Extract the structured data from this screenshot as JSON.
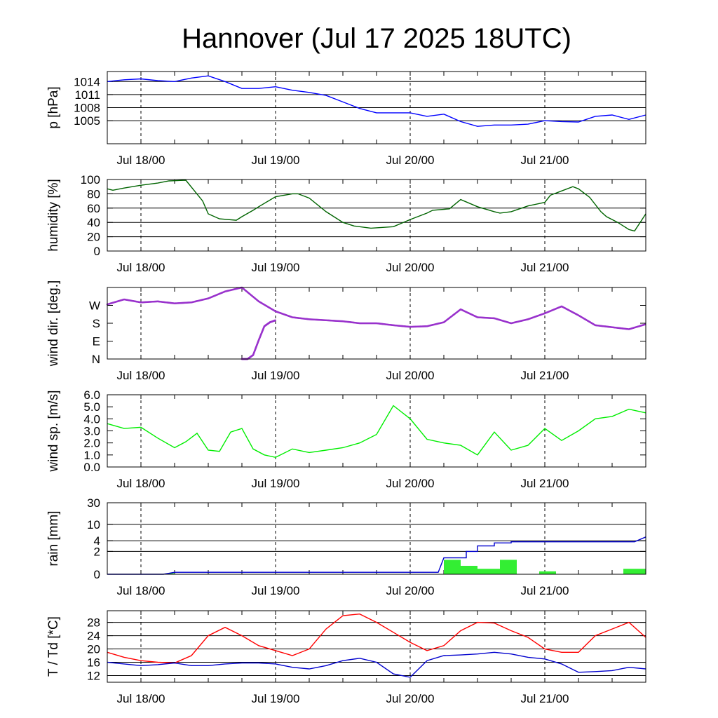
{
  "title": "Hannover (Jul 17 2025 18UTC)",
  "x_tick_labels": [
    "Jul 18/00",
    "Jul 19/00",
    "Jul 20/00",
    "Jul 21/00"
  ],
  "x_domain_hours": [
    0,
    96
  ],
  "x_tick_hours": [
    6,
    30,
    54,
    78
  ],
  "chart_data": [
    {
      "type": "line",
      "ylabel": "p [hPa]",
      "ylim": [
        999.7,
        1016.3
      ],
      "yticks": [
        1005,
        1008,
        1011,
        1014
      ],
      "ytick_labels": [
        "1005",
        "1008",
        "1011",
        "1014"
      ],
      "grid": true,
      "series": [
        {
          "color": "#0000ff",
          "x": [
            0,
            3,
            6,
            9,
            12,
            15,
            18,
            21,
            24,
            27,
            30,
            33,
            36,
            39,
            42,
            45,
            48,
            51,
            54,
            57,
            60,
            63,
            66,
            69,
            72,
            75,
            78,
            81,
            84,
            87,
            90,
            93,
            96
          ],
          "y": [
            1014,
            1014.4,
            1014.6,
            1014.2,
            1014,
            1014.8,
            1015.3,
            1014,
            1012.4,
            1012.4,
            1012.8,
            1012,
            1011.5,
            1010.8,
            1009.3,
            1007.8,
            1006.8,
            1006.8,
            1006.8,
            1006,
            1006.5,
            1004.8,
            1003.7,
            1004,
            1004,
            1004.2,
            1005,
            1004.8,
            1004.7,
            1006,
            1006.3,
            1005.3,
            1006.3
          ]
        }
      ]
    },
    {
      "type": "line",
      "ylabel": "humidity [%]",
      "ylim": [
        0,
        100
      ],
      "yticks": [
        0,
        20,
        40,
        60,
        80,
        100
      ],
      "ytick_labels": [
        "0",
        "20",
        "40",
        "60",
        "80",
        "100"
      ],
      "grid": true,
      "series": [
        {
          "color": "#006400",
          "x": [
            0,
            1,
            3,
            6,
            9,
            11,
            14,
            17,
            18,
            20,
            23,
            24,
            26,
            27,
            30,
            33,
            34,
            36,
            39,
            42,
            44,
            47,
            51,
            54,
            57,
            58,
            61,
            63,
            66,
            69,
            70,
            72,
            75,
            78,
            79,
            81,
            83,
            84,
            86,
            88,
            89,
            91,
            93,
            94,
            96
          ],
          "y": [
            87,
            85,
            88,
            92,
            95,
            98,
            99,
            70,
            52,
            45,
            43,
            48,
            57,
            62,
            76,
            80,
            80,
            74,
            55,
            40,
            35,
            32,
            34,
            44,
            53,
            57,
            59,
            72,
            62,
            55,
            53,
            55,
            63,
            68,
            78,
            84,
            90,
            87,
            75,
            55,
            48,
            40,
            30,
            28,
            52
          ]
        }
      ]
    },
    {
      "type": "scatter",
      "ylabel": "wind dir. [deg.]",
      "ylim": [
        0,
        360
      ],
      "yticks": [
        0,
        90,
        180,
        270
      ],
      "ytick_labels": [
        "N",
        "E",
        "S",
        "W"
      ],
      "grid": false,
      "series": [
        {
          "color": "#9932cc",
          "x": [
            0,
            3,
            6,
            9,
            12,
            15,
            18,
            21,
            24,
            27,
            30,
            33,
            36,
            39,
            42,
            45,
            48,
            51,
            54,
            57,
            60,
            63,
            66,
            69,
            72,
            75,
            78,
            81,
            84,
            87,
            90,
            93,
            96
          ],
          "y": [
            275,
            300,
            285,
            290,
            280,
            285,
            305,
            340,
            360,
            290,
            240,
            210,
            200,
            195,
            190,
            180,
            180,
            170,
            162,
            165,
            185,
            250,
            210,
            205,
            180,
            200,
            230,
            265,
            220,
            170,
            160,
            150,
            175
          ]
        },
        {
          "color": "#9932cc",
          "x": [
            24,
            25,
            26,
            27,
            28,
            29,
            30
          ],
          "y": [
            0,
            0,
            20,
            95,
            165,
            185,
            195
          ]
        }
      ]
    },
    {
      "type": "line",
      "ylabel": "wind sp. [m/s]",
      "ylim": [
        0,
        6
      ],
      "yticks": [
        0,
        1,
        2,
        3,
        4,
        5,
        6
      ],
      "ytick_labels": [
        "0.0",
        "1.0",
        "2.0",
        "3.0",
        "4.0",
        "5.0",
        "6.0"
      ],
      "grid": false,
      "series": [
        {
          "color": "#00ee00",
          "x": [
            0,
            3,
            6,
            9,
            12,
            14,
            16,
            18,
            20,
            22,
            24,
            26,
            28,
            30,
            33,
            36,
            39,
            42,
            45,
            48,
            51,
            54,
            57,
            60,
            63,
            66,
            69,
            72,
            75,
            78,
            81,
            84,
            87,
            90,
            93,
            96
          ],
          "y": [
            3.6,
            3.2,
            3.3,
            2.4,
            1.6,
            2.1,
            2.8,
            1.4,
            1.3,
            2.9,
            3.2,
            1.5,
            1.0,
            0.8,
            1.5,
            1.2,
            1.4,
            1.6,
            2.0,
            2.7,
            5.1,
            4.0,
            2.3,
            2.0,
            1.8,
            1.0,
            2.9,
            1.4,
            1.8,
            3.2,
            2.2,
            3.0,
            4.0,
            4.2,
            4.8,
            4.5
          ]
        }
      ]
    },
    {
      "type": "bar+line",
      "ylabel": "rain [mm]",
      "ylim": [
        0,
        30
      ],
      "yticks": [
        0,
        2,
        4,
        10,
        30
      ],
      "ytick_labels": [
        "0",
        "2",
        "4",
        "10",
        "30"
      ],
      "grid": true,
      "bars": [
        {
          "x0": 11,
          "x1": 12,
          "value": 0.05
        },
        {
          "x0": 60,
          "x1": 63,
          "value": 1.0
        },
        {
          "x0": 63,
          "x1": 66,
          "value": 0.5
        },
        {
          "x0": 66,
          "x1": 67,
          "value": 0.3
        },
        {
          "x0": 67,
          "x1": 70,
          "value": 0.3
        },
        {
          "x0": 70,
          "x1": 73,
          "value": 1.0
        },
        {
          "x0": 77,
          "x1": 80,
          "value": 0.15
        },
        {
          "x0": 92,
          "x1": 96,
          "value": 0.3
        }
      ],
      "series": [
        {
          "color": "#0000cd",
          "x": [
            0,
            10,
            12,
            59,
            60,
            64,
            64,
            66,
            66,
            69,
            69,
            72,
            72,
            94,
            96
          ],
          "y": [
            0,
            0,
            0.1,
            0.1,
            1.2,
            1.2,
            2.0,
            2.0,
            2.9,
            2.9,
            3.5,
            3.5,
            3.75,
            3.75,
            5.0
          ]
        }
      ]
    },
    {
      "type": "line",
      "ylabel": "T / Td [*C]",
      "ylim": [
        10,
        31.5
      ],
      "yticks": [
        12,
        16,
        20,
        24,
        28
      ],
      "ytick_labels": [
        "12",
        "16",
        "20",
        "24",
        "28"
      ],
      "grid": true,
      "series": [
        {
          "color": "#ff0000",
          "x": [
            0,
            3,
            6,
            9,
            12,
            15,
            18,
            21,
            24,
            27,
            30,
            33,
            36,
            39,
            42,
            45,
            48,
            51,
            54,
            57,
            60,
            63,
            66,
            69,
            72,
            75,
            78,
            81,
            84,
            87,
            90,
            93,
            96
          ],
          "y": [
            19,
            17.5,
            16.5,
            16,
            15.8,
            18,
            24,
            26.5,
            24,
            21,
            19.5,
            18,
            20,
            26,
            30,
            30.5,
            28,
            25,
            22,
            19.5,
            21,
            25.5,
            28,
            27.8,
            25.5,
            23.5,
            20,
            19,
            19,
            24,
            26,
            28,
            23.5
          ]
        },
        {
          "color": "#0000cd",
          "x": [
            0,
            3,
            6,
            9,
            12,
            15,
            18,
            21,
            24,
            27,
            30,
            33,
            36,
            39,
            42,
            45,
            48,
            51,
            54,
            57,
            60,
            63,
            66,
            69,
            72,
            75,
            78,
            81,
            84,
            87,
            90,
            93,
            96
          ],
          "y": [
            16,
            15.5,
            15,
            15.3,
            15.8,
            15,
            15,
            15.5,
            15.8,
            15.8,
            15.5,
            14.5,
            14,
            15,
            16.5,
            17.2,
            16,
            12.5,
            11.5,
            16.5,
            18,
            18.2,
            18.5,
            19,
            18.5,
            17.5,
            17,
            15.5,
            13,
            13.2,
            13.5,
            14.5,
            14
          ]
        }
      ]
    }
  ]
}
